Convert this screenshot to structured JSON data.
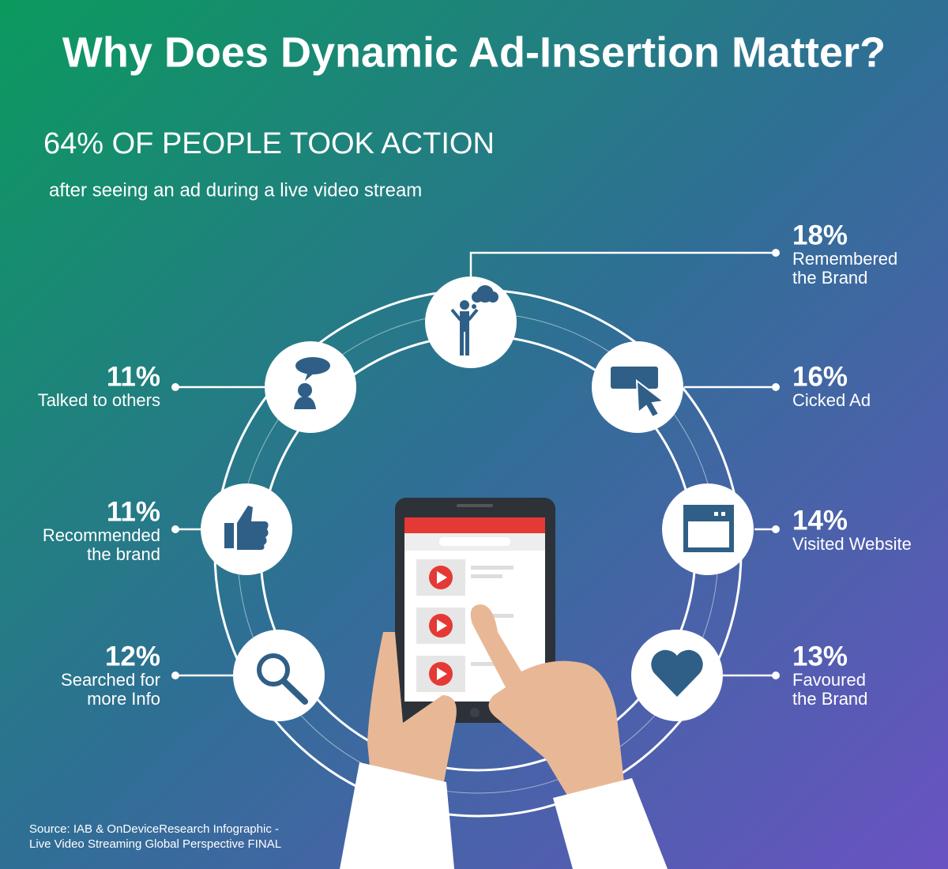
{
  "header": {
    "title": "Why Does Dynamic Ad-Insertion Matter?",
    "headline": "64% OF PEOPLE TOOK ACTION",
    "subtitle": "after seeing an ad during a live video stream"
  },
  "items": [
    {
      "value": "18%",
      "label": [
        "Remembered",
        "the Brand"
      ]
    },
    {
      "value": "16%",
      "label": [
        "Cicked Ad"
      ]
    },
    {
      "value": "14%",
      "label": [
        "Visited Website"
      ]
    },
    {
      "value": "13%",
      "label": [
        "Favoured",
        "the Brand"
      ]
    },
    {
      "value": "12%",
      "label": [
        "Searched for",
        "more Info"
      ]
    },
    {
      "value": "11%",
      "label": [
        "Recommended",
        "the brand"
      ]
    },
    {
      "value": "11%",
      "label": [
        "Talked to others"
      ]
    }
  ],
  "source": [
    "Source: IAB & OnDeviceResearch Infographic -",
    "Live Video Streaming Global Perspective FINAL"
  ]
}
